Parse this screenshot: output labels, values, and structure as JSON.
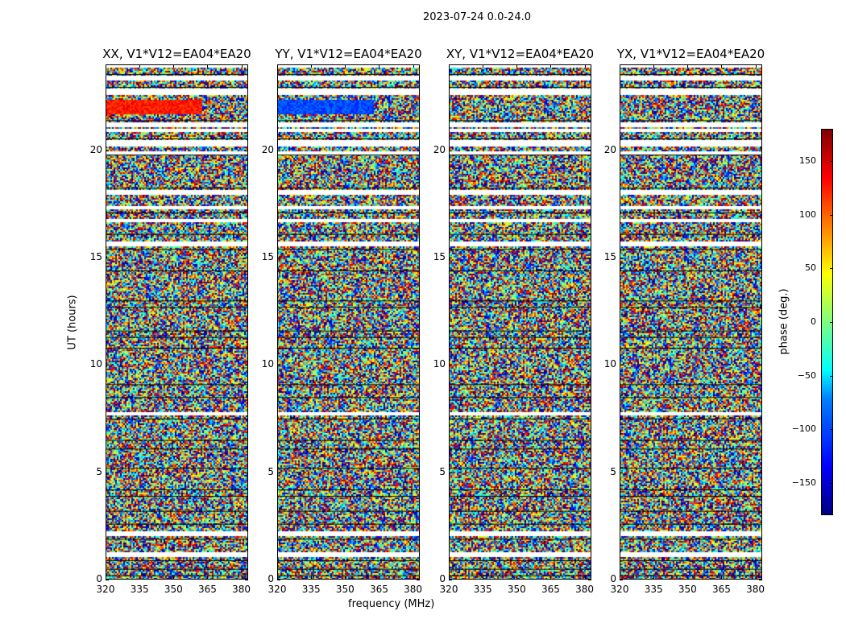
{
  "suptitle": "2023-07-24 0.0-24.0",
  "chart_data": {
    "type": "heatmap",
    "panels": [
      {
        "title": "XX, V1*V12=EA04*EA20"
      },
      {
        "title": "YY, V1*V12=EA04*EA20"
      },
      {
        "title": "XY, V1*V12=EA04*EA20"
      },
      {
        "title": "YX, V1*V12=EA04*EA20"
      }
    ],
    "xlabel": "frequency (MHz)",
    "ylabel": "UT (hours)",
    "xlim": [
      320,
      383
    ],
    "ylim": [
      0,
      24
    ],
    "xticks": [
      "320",
      "335",
      "350",
      "365",
      "380"
    ],
    "xtick_values": [
      320,
      335,
      350,
      365,
      380
    ],
    "yticks": [
      "0",
      "5",
      "10",
      "15",
      "20"
    ],
    "ytick_values": [
      0,
      5,
      10,
      15,
      20
    ],
    "colorbar": {
      "label": "phase (deg.)",
      "colormap": "jet",
      "range": [
        -180,
        180
      ],
      "ticks": [
        "150",
        "100",
        "50",
        "0",
        "−50",
        "−100",
        "−150"
      ],
      "tick_values": [
        150,
        100,
        50,
        0,
        -50,
        -100,
        -150
      ]
    }
  }
}
